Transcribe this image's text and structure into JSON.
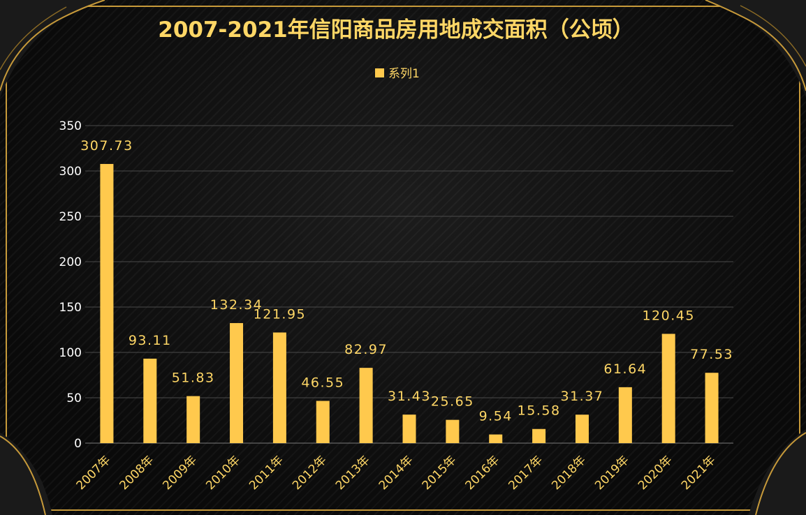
{
  "chart_data": {
    "type": "bar",
    "title": "2007-2021年信阳商品房用地成交面积（公顷）",
    "legend": {
      "label": "系列1",
      "position": "top"
    },
    "categories": [
      "2007年",
      "2008年",
      "2009年",
      "2010年",
      "2011年",
      "2012年",
      "2013年",
      "2014年",
      "2015年",
      "2016年",
      "2017年",
      "2018年",
      "2019年",
      "2020年",
      "2021年"
    ],
    "series": [
      {
        "name": "系列1",
        "values": [
          307.73,
          93.11,
          51.83,
          132.34,
          121.95,
          46.55,
          82.97,
          31.43,
          25.65,
          9.54,
          15.58,
          31.37,
          61.64,
          120.45,
          77.53
        ],
        "labels": [
          "307.73",
          "93.11",
          "51.83",
          "132.34",
          "121.95",
          "46.55",
          "82.97",
          "31.43",
          "25.65",
          "9.54",
          "15.58",
          "31.37",
          "61.64",
          "120.45",
          "77.53"
        ]
      }
    ],
    "ylim": [
      0,
      350
    ],
    "yticks": [
      0,
      50,
      100,
      150,
      200,
      250,
      300,
      350
    ],
    "grid": true,
    "colors": {
      "bar": "#FFC94D",
      "text": "#FFD766",
      "grid": "#4a4a4a",
      "axis_text": "#ffffff",
      "frame": "#c79a3a"
    }
  }
}
